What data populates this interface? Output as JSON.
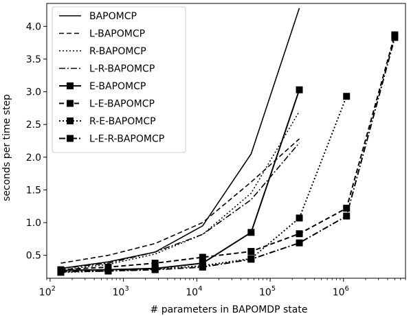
{
  "chart_data": {
    "type": "line",
    "title": "",
    "xlabel": "# parameters in BAPOMDP state",
    "ylabel": "seconds per time step",
    "xscale": "log",
    "xlim": [
      90,
      7000000
    ],
    "ylim": [
      0.15,
      4.35
    ],
    "x_ticks": [
      {
        "value": 100,
        "base": "10",
        "exp": "2"
      },
      {
        "value": 1000,
        "base": "10",
        "exp": "3"
      },
      {
        "value": 10000,
        "base": "10",
        "exp": "4"
      },
      {
        "value": 100000,
        "base": "10",
        "exp": "5"
      },
      {
        "value": 1000000,
        "base": "10",
        "exp": "6"
      }
    ],
    "y_ticks": [
      {
        "value": 0.5,
        "label": "0.5"
      },
      {
        "value": 1.0,
        "label": "1.0"
      },
      {
        "value": 1.5,
        "label": "1.5"
      },
      {
        "value": 2.0,
        "label": "2.0"
      },
      {
        "value": 2.5,
        "label": "2.5"
      },
      {
        "value": 3.0,
        "label": "3.0"
      },
      {
        "value": 3.5,
        "label": "3.5"
      },
      {
        "value": 4.0,
        "label": "4.0"
      }
    ],
    "legend_position": "top-left",
    "grid": false,
    "series": [
      {
        "name": "BAPOMCP",
        "dash": "solid",
        "marker": false,
        "x": [
          140,
          620,
          2700,
          12000,
          55000,
          250000
        ],
        "y": [
          0.3,
          0.4,
          0.55,
          0.95,
          2.05,
          4.28
        ]
      },
      {
        "name": "L-BAPOMCP",
        "dash": "dashed",
        "marker": false,
        "x": [
          140,
          620,
          2700,
          12000,
          55000,
          250000
        ],
        "y": [
          0.38,
          0.5,
          0.68,
          1.0,
          1.62,
          2.28
        ]
      },
      {
        "name": "R-BAPOMCP",
        "dash": "dotted",
        "marker": false,
        "x": [
          140,
          620,
          2700,
          12000,
          55000,
          250000
        ],
        "y": [
          0.28,
          0.36,
          0.52,
          0.82,
          1.45,
          2.7
        ]
      },
      {
        "name": "L-R-BAPOMCP",
        "dash": "dashdot",
        "marker": false,
        "x": [
          140,
          620,
          2700,
          12000,
          55000,
          250000
        ],
        "y": [
          0.3,
          0.38,
          0.55,
          0.82,
          1.35,
          2.22
        ]
      },
      {
        "name": "E-BAPOMCP",
        "dash": "solid",
        "marker": true,
        "x": [
          140,
          620,
          2700,
          12000,
          55000,
          250000
        ],
        "y": [
          0.27,
          0.28,
          0.3,
          0.38,
          0.85,
          3.03
        ]
      },
      {
        "name": "L-E-BAPOMCP",
        "dash": "dashed",
        "marker": true,
        "x": [
          140,
          620,
          2700,
          12000,
          55000,
          250000,
          1100000,
          5000000
        ],
        "y": [
          0.28,
          0.32,
          0.38,
          0.47,
          0.56,
          0.83,
          1.22,
          3.87
        ]
      },
      {
        "name": "R-E-BAPOMCP",
        "dash": "dotted",
        "marker": true,
        "x": [
          140,
          620,
          2700,
          12000,
          55000,
          250000,
          1100000
        ],
        "y": [
          0.24,
          0.26,
          0.29,
          0.34,
          0.45,
          1.07,
          2.93
        ]
      },
      {
        "name": "L-E-R-BAPOMCP",
        "dash": "dashdot",
        "marker": true,
        "x": [
          140,
          620,
          2700,
          12000,
          55000,
          250000,
          1100000,
          5000000
        ],
        "y": [
          0.25,
          0.26,
          0.28,
          0.32,
          0.44,
          0.69,
          1.1,
          3.83
        ]
      }
    ]
  }
}
